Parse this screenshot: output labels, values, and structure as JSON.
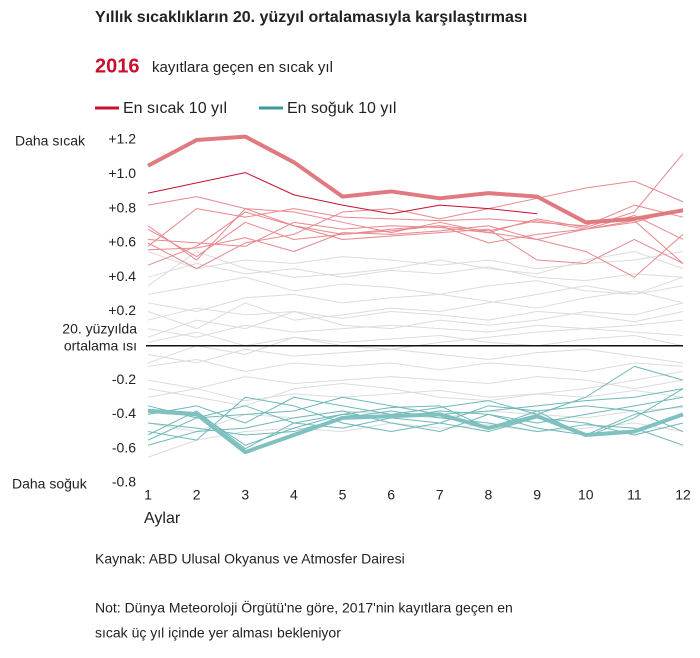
{
  "chart_data": {
    "type": "line",
    "title": "Yıllık sıcaklıkların 20. yüzyıl ortalamasıyla karşılaştırması",
    "highlight": "2016",
    "subtitle": "kayıtlara geçen en sıcak yıl",
    "legend": [
      {
        "name": "En sıcak 10 yıl",
        "color": "#c8102e"
      },
      {
        "name": "En soğuk 10 yıl",
        "color": "#3d9a9b"
      }
    ],
    "annotations": [
      "Daha sıcak",
      "Daha soğuk"
    ],
    "zero_label": [
      "20. yüzyılda",
      "ortalama ısı"
    ],
    "baseline": 0,
    "x_label": "Aylar",
    "x": [
      1,
      2,
      3,
      4,
      5,
      6,
      7,
      8,
      9,
      10,
      11,
      12
    ],
    "xlim": [
      1,
      12
    ],
    "ylim": [
      -0.8,
      1.2
    ],
    "yticks": [
      {
        "value": 1.2,
        "label": "+1.2"
      },
      {
        "value": 1.0,
        "label": "+1.0"
      },
      {
        "value": 0.8,
        "label": "+0.8"
      },
      {
        "value": 0.6,
        "label": "+0.6"
      },
      {
        "value": 0.4,
        "label": "+0.4"
      },
      {
        "value": 0.2,
        "label": "+0.2"
      },
      -0.2,
      -0.4,
      -0.6,
      -0.8
    ],
    "series": [
      {
        "color": "#dcdcdc",
        "line_width": 1,
        "values": [
          0.55,
          0.45,
          0.5,
          0.48,
          0.52,
          0.5,
          0.47,
          0.5,
          0.45,
          0.48,
          0.5,
          0.55
        ]
      },
      {
        "color": "#dcdcdc",
        "line_width": 1,
        "values": [
          0.4,
          0.48,
          0.42,
          0.45,
          0.4,
          0.44,
          0.42,
          0.46,
          0.4,
          0.38,
          0.42,
          0.4
        ]
      },
      {
        "color": "#dcdcdc",
        "line_width": 1,
        "values": [
          0.3,
          0.35,
          0.4,
          0.32,
          0.36,
          0.34,
          0.3,
          0.35,
          0.38,
          0.32,
          0.3,
          0.35
        ]
      },
      {
        "color": "#dcdcdc",
        "line_width": 1,
        "values": [
          0.25,
          0.2,
          0.28,
          0.3,
          0.25,
          0.28,
          0.3,
          0.26,
          0.22,
          0.28,
          0.32,
          0.25
        ]
      },
      {
        "color": "#dcdcdc",
        "line_width": 1,
        "values": [
          0.15,
          0.22,
          0.18,
          0.2,
          0.16,
          0.2,
          0.18,
          0.15,
          0.2,
          0.18,
          0.14,
          0.2
        ]
      },
      {
        "color": "#dcdcdc",
        "line_width": 1,
        "values": [
          0.1,
          0.05,
          0.12,
          0.08,
          0.1,
          0.12,
          0.1,
          0.08,
          0.12,
          0.1,
          0.08,
          0.06
        ]
      },
      {
        "color": "#dcdcdc",
        "line_width": 1,
        "values": [
          0.02,
          0.08,
          0.0,
          0.05,
          0.02,
          0.04,
          0.06,
          0.02,
          0.0,
          0.04,
          0.06,
          0.0
        ]
      },
      {
        "color": "#dcdcdc",
        "line_width": 1,
        "values": [
          -0.05,
          -0.1,
          -0.02,
          -0.06,
          -0.04,
          -0.02,
          -0.05,
          -0.08,
          -0.04,
          -0.02,
          -0.06,
          -0.1
        ]
      },
      {
        "color": "#dcdcdc",
        "line_width": 1,
        "values": [
          -0.12,
          -0.08,
          -0.15,
          -0.1,
          -0.12,
          -0.1,
          -0.14,
          -0.1,
          -0.12,
          -0.15,
          -0.1,
          -0.12
        ]
      },
      {
        "color": "#dcdcdc",
        "line_width": 1,
        "values": [
          -0.2,
          -0.25,
          -0.18,
          -0.22,
          -0.2,
          -0.18,
          -0.2,
          -0.22,
          -0.18,
          -0.2,
          -0.25,
          -0.2
        ]
      },
      {
        "color": "#dcdcdc",
        "line_width": 1,
        "values": [
          -0.3,
          -0.25,
          -0.32,
          -0.28,
          -0.3,
          -0.28,
          -0.26,
          -0.3,
          -0.28,
          -0.3,
          -0.26,
          -0.3
        ]
      },
      {
        "color": "#dcdcdc",
        "line_width": 1,
        "values": [
          -0.45,
          -0.5,
          -0.4,
          -0.42,
          -0.38,
          -0.4,
          -0.42,
          -0.38,
          -0.4,
          -0.42,
          -0.38,
          -0.36
        ]
      },
      {
        "color": "#dcdcdc",
        "line_width": 1,
        "values": [
          -0.65,
          -0.55,
          -0.5,
          -0.48,
          -0.5,
          -0.45,
          -0.48,
          -0.46,
          -0.5,
          -0.48,
          -0.45,
          -0.5
        ]
      },
      {
        "color": "#dcdcdc",
        "line_width": 1,
        "values": [
          0.2,
          0.1,
          0.25,
          0.15,
          0.18,
          0.22,
          0.2,
          0.25,
          0.3,
          0.35,
          0.3,
          0.4
        ]
      },
      {
        "color": "#dcdcdc",
        "line_width": 1,
        "values": [
          -0.1,
          0.0,
          -0.05,
          0.05,
          0.0,
          -0.02,
          0.02,
          0.05,
          0.08,
          0.1,
          0.12,
          0.15
        ]
      },
      {
        "color": "#dcdcdc",
        "line_width": 1,
        "values": [
          0.35,
          0.55,
          0.45,
          0.4,
          0.42,
          0.45,
          0.5,
          0.45,
          0.42,
          0.5,
          0.55,
          0.45
        ]
      },
      {
        "color": "#dcdcdc",
        "line_width": 1,
        "values": [
          -0.25,
          -0.3,
          -0.35,
          -0.25,
          -0.22,
          -0.25,
          -0.3,
          -0.32,
          -0.28,
          -0.25,
          -0.2,
          -0.15
        ]
      },
      {
        "color": "#dcdcdc",
        "line_width": 1,
        "values": [
          0.05,
          0.15,
          0.1,
          0.2,
          0.12,
          0.1,
          0.15,
          0.12,
          0.15,
          0.2,
          0.18,
          0.25
        ]
      },
      {
        "color": "#6fb8b8",
        "line_width": 1,
        "values": [
          -0.37,
          -0.39,
          -0.58,
          -0.48,
          -0.4,
          -0.36,
          -0.35,
          -0.48,
          -0.38,
          -0.53,
          -0.42,
          -0.25
        ]
      },
      {
        "color": "#6fb8b8",
        "line_width": 1,
        "values": [
          -0.55,
          -0.42,
          -0.35,
          -0.45,
          -0.4,
          -0.42,
          -0.38,
          -0.4,
          -0.45,
          -0.4,
          -0.35,
          -0.3
        ]
      },
      {
        "color": "#6fb8b8",
        "line_width": 1,
        "values": [
          -0.5,
          -0.55,
          -0.3,
          -0.35,
          -0.45,
          -0.5,
          -0.45,
          -0.35,
          -0.38,
          -0.35,
          -0.38,
          -0.5
        ]
      },
      {
        "color": "#6fb8b8",
        "line_width": 1,
        "values": [
          -0.45,
          -0.48,
          -0.52,
          -0.5,
          -0.42,
          -0.38,
          -0.42,
          -0.45,
          -0.5,
          -0.46,
          -0.48,
          -0.58
        ]
      },
      {
        "color": "#6fb8b8",
        "line_width": 1,
        "values": [
          -0.4,
          -0.35,
          -0.45,
          -0.3,
          -0.35,
          -0.4,
          -0.36,
          -0.32,
          -0.4,
          -0.3,
          -0.12,
          -0.2
        ]
      },
      {
        "color": "#6fb8b8",
        "line_width": 1,
        "values": [
          -0.58,
          -0.5,
          -0.48,
          -0.42,
          -0.38,
          -0.45,
          -0.5,
          -0.4,
          -0.48,
          -0.52,
          -0.4,
          -0.35
        ]
      },
      {
        "color": "#6fb8b8",
        "line_width": 1,
        "values": [
          -0.35,
          -0.42,
          -0.4,
          -0.38,
          -0.3,
          -0.35,
          -0.4,
          -0.38,
          -0.35,
          -0.32,
          -0.3,
          -0.25
        ]
      },
      {
        "color": "#6fb8b8",
        "line_width": 1,
        "values": [
          -0.52,
          -0.38,
          -0.6,
          -0.45,
          -0.48,
          -0.42,
          -0.45,
          -0.5,
          -0.42,
          -0.45,
          -0.52,
          -0.45
        ]
      },
      {
        "color": "#7fc0c0",
        "line_width": 4,
        "values": [
          -0.38,
          -0.4,
          -0.62,
          -0.52,
          -0.42,
          -0.41,
          -0.4,
          -0.48,
          -0.41,
          -0.52,
          -0.5,
          -0.4
        ]
      },
      {
        "color": "#e8888d",
        "line_width": 1,
        "values": [
          0.7,
          0.5,
          0.8,
          0.78,
          0.72,
          0.66,
          0.72,
          0.66,
          0.74,
          0.69,
          0.78,
          1.12
        ]
      },
      {
        "color": "#e8888d",
        "line_width": 1,
        "values": [
          0.82,
          0.87,
          0.8,
          0.7,
          0.65,
          0.68,
          0.7,
          0.67,
          0.73,
          0.68,
          0.72,
          0.8
        ]
      },
      {
        "color": "#e8888d",
        "line_width": 1,
        "values": [
          0.6,
          0.45,
          0.6,
          0.65,
          0.78,
          0.8,
          0.74,
          0.8,
          0.86,
          0.92,
          0.96,
          0.84
        ]
      },
      {
        "color": "#e8888d",
        "line_width": 1,
        "values": [
          0.56,
          0.57,
          0.63,
          0.55,
          0.66,
          0.65,
          0.67,
          0.7,
          0.62,
          0.55,
          0.4,
          0.65
        ]
      },
      {
        "color": "#e8888d",
        "line_width": 1,
        "values": [
          0.47,
          0.58,
          0.78,
          0.7,
          0.62,
          0.64,
          0.66,
          0.68,
          0.5,
          0.48,
          0.62,
          0.48
        ]
      },
      {
        "color": "#e8888d",
        "line_width": 1,
        "values": [
          0.68,
          0.52,
          0.72,
          0.62,
          0.65,
          0.67,
          0.7,
          0.6,
          0.65,
          0.68,
          0.76,
          0.62
        ]
      },
      {
        "color": "#e8888d",
        "line_width": 1,
        "values": [
          0.58,
          0.8,
          0.75,
          0.8,
          0.75,
          0.74,
          0.73,
          0.74,
          0.72,
          0.7,
          0.82,
          0.75
        ]
      },
      {
        "color": "#e8888d",
        "line_width": 1,
        "values": [
          0.62,
          0.6,
          0.58,
          0.72,
          0.68,
          0.7,
          0.69,
          0.66,
          0.62,
          0.68,
          0.73,
          0.48
        ]
      },
      {
        "color": "#c8102e",
        "line_width": 1,
        "values": [
          0.89,
          0.95,
          1.01,
          0.88,
          0.82,
          0.77,
          0.82,
          0.8,
          0.77,
          null,
          null,
          null
        ]
      },
      {
        "color": "#e07a80",
        "line_width": 4,
        "values": [
          1.05,
          1.2,
          1.22,
          1.07,
          0.87,
          0.9,
          0.86,
          0.89,
          0.87,
          0.72,
          0.74,
          0.79
        ]
      }
    ]
  },
  "footer": {
    "source": "Kaynak: ABD Ulusal Okyanus ve Atmosfer Dairesi",
    "note": [
      "Not: Dünya Meteoroloji Örgütü'ne göre, 2017'nin kayıtlara geçen en",
      "sıcak üç yıl içinde yer alması bekleniyor"
    ]
  }
}
